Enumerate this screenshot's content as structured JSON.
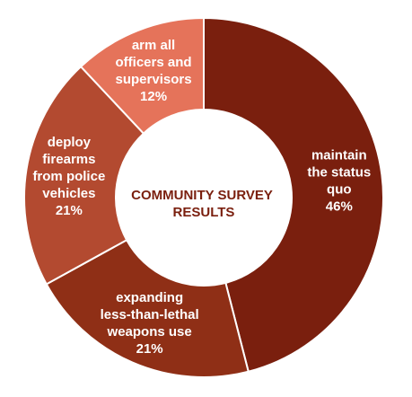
{
  "chart_data": {
    "type": "pie",
    "style": "donut",
    "center_title_lines": [
      "COMMUNITY SURVEY",
      "RESULTS"
    ],
    "slices": [
      {
        "label_lines": [
          "maintain",
          "the status",
          "quo"
        ],
        "value": 46,
        "value_label": "46%",
        "color": "#7a1f0e"
      },
      {
        "label_lines": [
          "expanding",
          "less-than-lethal",
          "weapons use"
        ],
        "value": 21,
        "value_label": "21%",
        "color": "#8f2f16"
      },
      {
        "label_lines": [
          "deploy",
          "firearms",
          "from police",
          "vehicles"
        ],
        "value": 21,
        "value_label": "21%",
        "color": "#b34a30"
      },
      {
        "label_lines": [
          "arm all",
          "officers and",
          "supervisors"
        ],
        "value": 12,
        "value_label": "12%",
        "color": "#e5735a"
      }
    ],
    "colors": {
      "center_text": "#7a1f0e",
      "label_text": "#ffffff",
      "background": "#ffffff"
    }
  }
}
